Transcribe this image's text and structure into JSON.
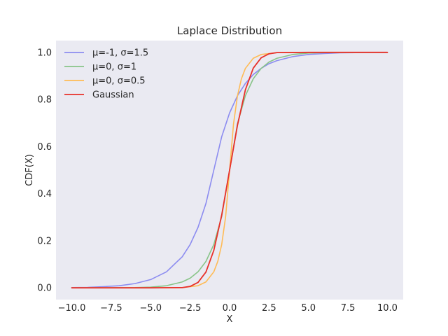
{
  "chart_data": {
    "type": "line",
    "title": "Laplace Distribution",
    "xlabel": "X",
    "ylabel": "CDF(X)",
    "xlim": [
      -11.0,
      11.0
    ],
    "ylim": [
      -0.05,
      1.05
    ],
    "xticks": [
      -10.0,
      -7.5,
      -5.0,
      -2.5,
      0.0,
      2.5,
      5.0,
      7.5,
      10.0
    ],
    "xtick_labels": [
      "−10.0",
      "−7.5",
      "−5.0",
      "−2.5",
      "0.0",
      "2.5",
      "5.0",
      "7.5",
      "10.0"
    ],
    "yticks": [
      0.0,
      0.2,
      0.4,
      0.6,
      0.8,
      1.0
    ],
    "ytick_labels": [
      "0.0",
      "0.2",
      "0.4",
      "0.6",
      "0.8",
      "1.0"
    ],
    "grid": false,
    "background": "#eaeaf2",
    "legend_position": "upper-left",
    "series": [
      {
        "name": "μ=-1, σ=1.5",
        "color": "#8c8cf0",
        "x": [
          -10,
          -9,
          -8,
          -7,
          -6,
          -5,
          -4,
          -3,
          -2.5,
          -2,
          -1.5,
          -1,
          -0.5,
          0,
          0.5,
          1,
          1.5,
          2,
          2.5,
          3,
          4,
          5,
          6,
          7,
          8,
          9,
          10
        ],
        "y": [
          0.001,
          0.002,
          0.005,
          0.009,
          0.018,
          0.035,
          0.068,
          0.132,
          0.184,
          0.257,
          0.358,
          0.5,
          0.642,
          0.743,
          0.816,
          0.868,
          0.906,
          0.932,
          0.952,
          0.965,
          0.982,
          0.991,
          0.995,
          0.998,
          0.999,
          0.9995,
          0.9998
        ]
      },
      {
        "name": "μ=0, σ=1",
        "color": "#88c488",
        "x": [
          -10,
          -8,
          -6,
          -5,
          -4,
          -3,
          -2.5,
          -2,
          -1.5,
          -1,
          -0.5,
          0,
          0.5,
          1,
          1.5,
          2,
          2.5,
          3,
          4,
          5,
          6,
          8,
          10
        ],
        "y": [
          0.0,
          0.0002,
          0.001,
          0.003,
          0.009,
          0.025,
          0.041,
          0.068,
          0.112,
          0.184,
          0.303,
          0.5,
          0.697,
          0.816,
          0.888,
          0.932,
          0.959,
          0.975,
          0.991,
          0.997,
          0.999,
          0.9998,
          1.0
        ]
      },
      {
        "name": "μ=0, σ=0.5",
        "color": "#ffbb55",
        "x": [
          -10,
          -5,
          -3,
          -2,
          -1.5,
          -1,
          -0.75,
          -0.5,
          -0.25,
          0,
          0.25,
          0.5,
          0.75,
          1,
          1.5,
          2,
          3,
          5,
          10
        ],
        "y": [
          0.0,
          0.0,
          0.001,
          0.009,
          0.025,
          0.068,
          0.112,
          0.184,
          0.303,
          0.5,
          0.697,
          0.816,
          0.888,
          0.932,
          0.975,
          0.991,
          0.999,
          1.0,
          1.0
        ]
      },
      {
        "name": "Gaussian",
        "color": "#e8302a",
        "x": [
          -10,
          -5,
          -3,
          -2.5,
          -2,
          -1.5,
          -1,
          -0.5,
          0,
          0.5,
          1,
          1.5,
          2,
          2.5,
          3,
          5,
          10
        ],
        "y": [
          0.0,
          0.0,
          0.001,
          0.006,
          0.023,
          0.067,
          0.159,
          0.309,
          0.5,
          0.691,
          0.841,
          0.933,
          0.977,
          0.994,
          0.999,
          1.0,
          1.0
        ]
      }
    ]
  }
}
